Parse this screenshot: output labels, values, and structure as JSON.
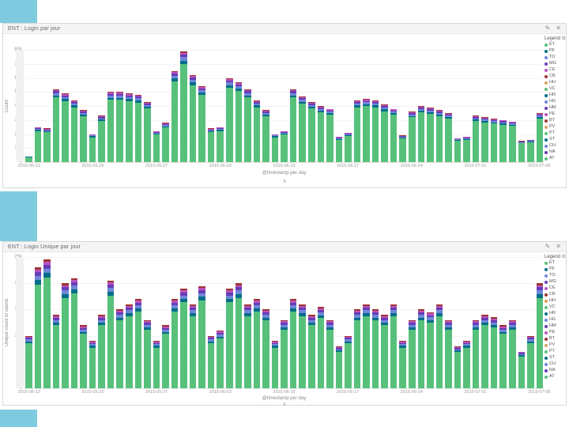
{
  "colors": {
    "accent_blue": "#7ecbdf",
    "stack": [
      "#57c17b",
      "#006e8a",
      "#6f87d8",
      "#663db8",
      "#bc52bc",
      "#9e3533"
    ]
  },
  "panels": [
    {
      "title": "ENT : Login par jour",
      "edit_icon": "✎",
      "close_icon": "✕",
      "legend_title": "Legend ⊙",
      "collapse_caret": "∧"
    },
    {
      "title": "ENT : Login Unique par jour",
      "edit_icon": "✎",
      "close_icon": "✕",
      "legend_title": "Legend ⊙",
      "collapse_caret": "∧"
    }
  ],
  "legend": {
    "items": [
      {
        "label": "ET",
        "color": "#57c17b"
      },
      {
        "label": "PF",
        "color": "#006e8a"
      },
      {
        "label": "TO",
        "color": "#6f87d8"
      },
      {
        "label": "MG",
        "color": "#663db8"
      },
      {
        "label": "CE",
        "color": "#bc52bc"
      },
      {
        "label": "CB",
        "color": "#9e3533"
      },
      {
        "label": "HH",
        "color": "#daa05d"
      },
      {
        "label": "VC",
        "color": "#57c17b"
      },
      {
        "label": "HR",
        "color": "#006e8a"
      },
      {
        "label": "HG",
        "color": "#6f87d8"
      },
      {
        "label": "HM",
        "color": "#663db8"
      },
      {
        "label": "PE",
        "color": "#bc52bc"
      },
      {
        "label": "BT",
        "color": "#9e3533"
      },
      {
        "label": "PV",
        "color": "#daa05d"
      },
      {
        "label": "PT",
        "color": "#57c17b"
      },
      {
        "label": "ST",
        "color": "#006e8a"
      },
      {
        "label": "CH",
        "color": "#6f87d8"
      },
      {
        "label": "NA",
        "color": "#663db8"
      },
      {
        "label": "AT",
        "color": "#57c17b"
      }
    ]
  },
  "chart_data": [
    {
      "type": "bar",
      "stacked": true,
      "title": "ENT : Login par jour",
      "xlabel": "@timestamp per day",
      "ylabel": "Count",
      "ylim": [
        0,
        80000
      ],
      "y_ticks": [
        "80k",
        "70k",
        "60k",
        "50k",
        "40k",
        "30k",
        "20k",
        "10k",
        "0"
      ],
      "x_tick_labels": [
        "2015-05-13",
        "2015-05-20",
        "2015-05-27",
        "2015-06-03",
        "2015-06-10",
        "2015-06-17",
        "2015-06-24",
        "2015-07-01",
        "2015-07-08"
      ],
      "x_tick_bar_indices": [
        0,
        7,
        14,
        21,
        28,
        35,
        42,
        49,
        56
      ],
      "legend_position": "right",
      "grid": false,
      "stack_fractions": [
        0.885,
        0.03,
        0.03,
        0.025,
        0.017,
        0.013
      ],
      "values": [
        4000,
        25000,
        24000,
        52000,
        49000,
        44000,
        37000,
        20000,
        33000,
        50000,
        50000,
        49000,
        48000,
        43000,
        22000,
        28000,
        65000,
        79000,
        62000,
        54000,
        24000,
        25000,
        60000,
        57000,
        52000,
        44000,
        37000,
        20000,
        22000,
        52000,
        47000,
        43000,
        40000,
        38000,
        18000,
        21000,
        44000,
        45000,
        44000,
        41000,
        38000,
        19000,
        36000,
        40000,
        39000,
        37000,
        35000,
        17000,
        18000,
        33000,
        32000,
        31000,
        30000,
        29000,
        15000,
        16000,
        35000
      ]
    },
    {
      "type": "bar",
      "stacked": true,
      "title": "ENT : Login Unique par jour",
      "xlabel": "@timestamp per day",
      "ylabel": "Unique count of userid",
      "ylim": [
        0,
        25000
      ],
      "y_ticks": [
        "25k",
        "20k",
        "15k",
        "10k",
        "5k",
        "0"
      ],
      "x_tick_labels": [
        "2015-05-13",
        "2015-05-20",
        "2015-05-27",
        "2015-06-03",
        "2015-06-10",
        "2015-06-17",
        "2015-06-24",
        "2015-07-01",
        "2015-07-08"
      ],
      "x_tick_bar_indices": [
        0,
        7,
        14,
        21,
        28,
        35,
        42,
        49,
        56
      ],
      "legend_position": "right",
      "grid": false,
      "stack_fractions": [
        0.86,
        0.035,
        0.035,
        0.03,
        0.022,
        0.018
      ],
      "values": [
        10000,
        23000,
        24500,
        14000,
        20000,
        21000,
        12000,
        9000,
        14000,
        20500,
        15000,
        16000,
        17000,
        13000,
        9000,
        12000,
        17000,
        19000,
        16000,
        19500,
        10000,
        11000,
        19000,
        20000,
        16000,
        17000,
        15000,
        9000,
        13000,
        17000,
        16000,
        14000,
        15500,
        13000,
        8000,
        10000,
        15000,
        16000,
        15000,
        14000,
        16000,
        9000,
        13000,
        15000,
        14500,
        16000,
        13000,
        8000,
        9000,
        13000,
        14000,
        13500,
        12000,
        13000,
        7000,
        10000,
        20000
      ]
    }
  ]
}
